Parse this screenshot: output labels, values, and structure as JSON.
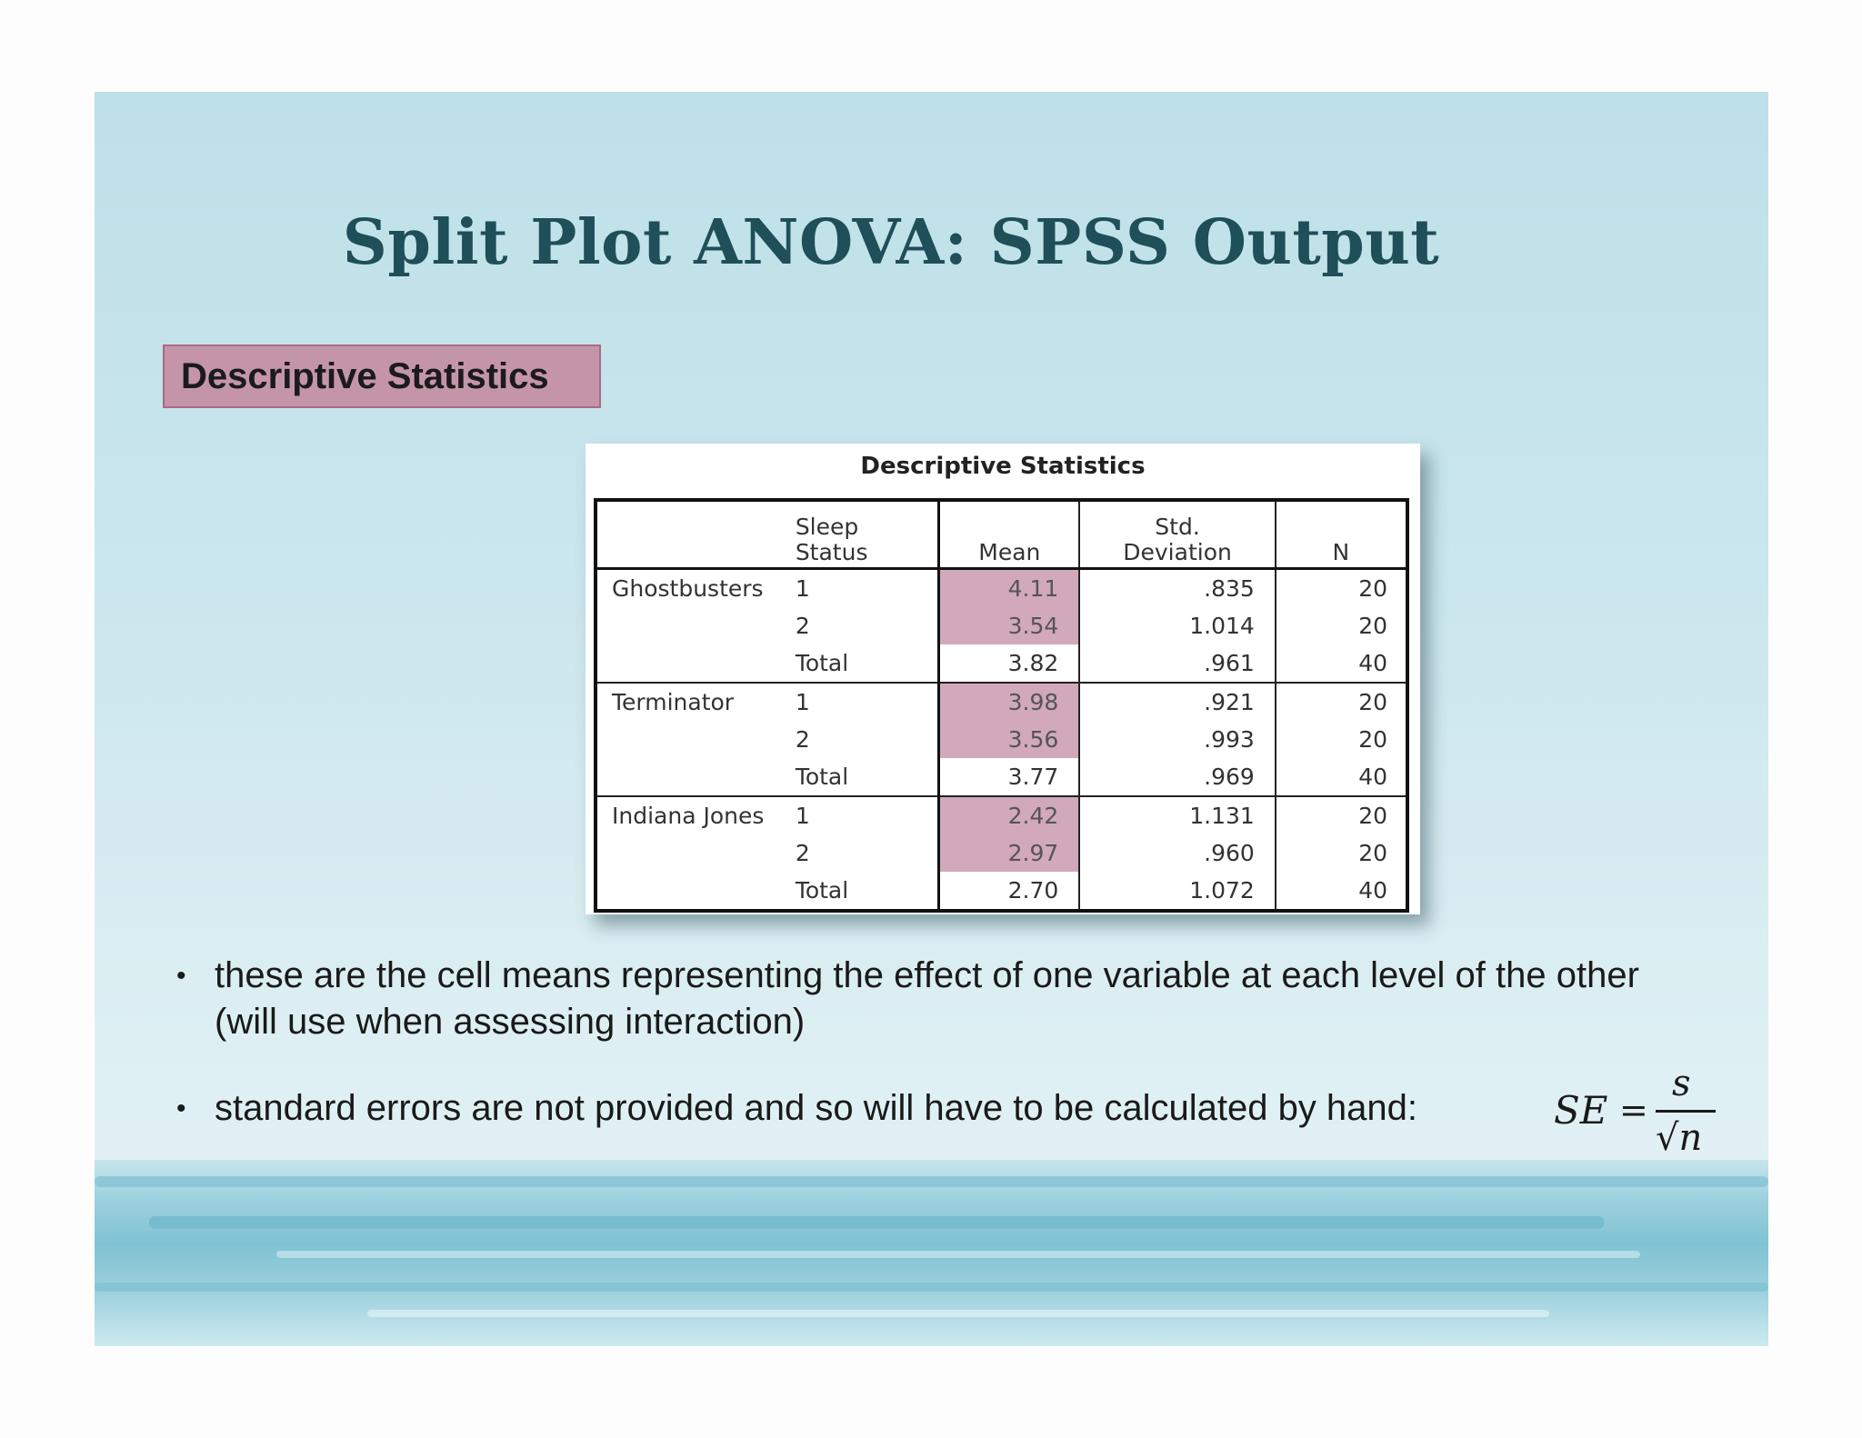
{
  "slide": {
    "title": "Split Plot ANOVA: SPSS Output",
    "section_label": "Descriptive Statistics"
  },
  "spss_table": {
    "title": "Descriptive Statistics",
    "headers": {
      "group": "",
      "level": "Sleep Status",
      "mean": "Mean",
      "std_line1": "Std.",
      "std_line2": "Deviation",
      "n": "N"
    },
    "highlight_color": "#d2a8bd",
    "groups": [
      {
        "name": "Ghostbusters",
        "rows": [
          {
            "level": "1",
            "mean": "4.11",
            "std": ".835",
            "n": "20"
          },
          {
            "level": "2",
            "mean": "3.54",
            "std": "1.014",
            "n": "20"
          },
          {
            "level": "Total",
            "mean": "3.82",
            "std": ".961",
            "n": "40"
          }
        ]
      },
      {
        "name": "Terminator",
        "rows": [
          {
            "level": "1",
            "mean": "3.98",
            "std": ".921",
            "n": "20"
          },
          {
            "level": "2",
            "mean": "3.56",
            "std": ".993",
            "n": "20"
          },
          {
            "level": "Total",
            "mean": "3.77",
            "std": ".969",
            "n": "40"
          }
        ]
      },
      {
        "name": "Indiana Jones",
        "rows": [
          {
            "level": "1",
            "mean": "2.42",
            "std": "1.131",
            "n": "20"
          },
          {
            "level": "2",
            "mean": "2.97",
            "std": ".960",
            "n": "20"
          },
          {
            "level": "Total",
            "mean": "2.70",
            "std": "1.072",
            "n": "40"
          }
        ]
      }
    ]
  },
  "bullets": [
    "these are the cell means representing the effect of one variable at each level of the other (will use when assessing interaction)",
    "standard errors are not provided and so will have to be calculated by hand:"
  ],
  "formula": {
    "lhs": "SE",
    "equals": "=",
    "numerator": "s",
    "radical": "√",
    "denominator": "n"
  },
  "colors": {
    "title": "#1f4f59",
    "label_box": "#c495a8",
    "background_top": "#bee0e8"
  }
}
